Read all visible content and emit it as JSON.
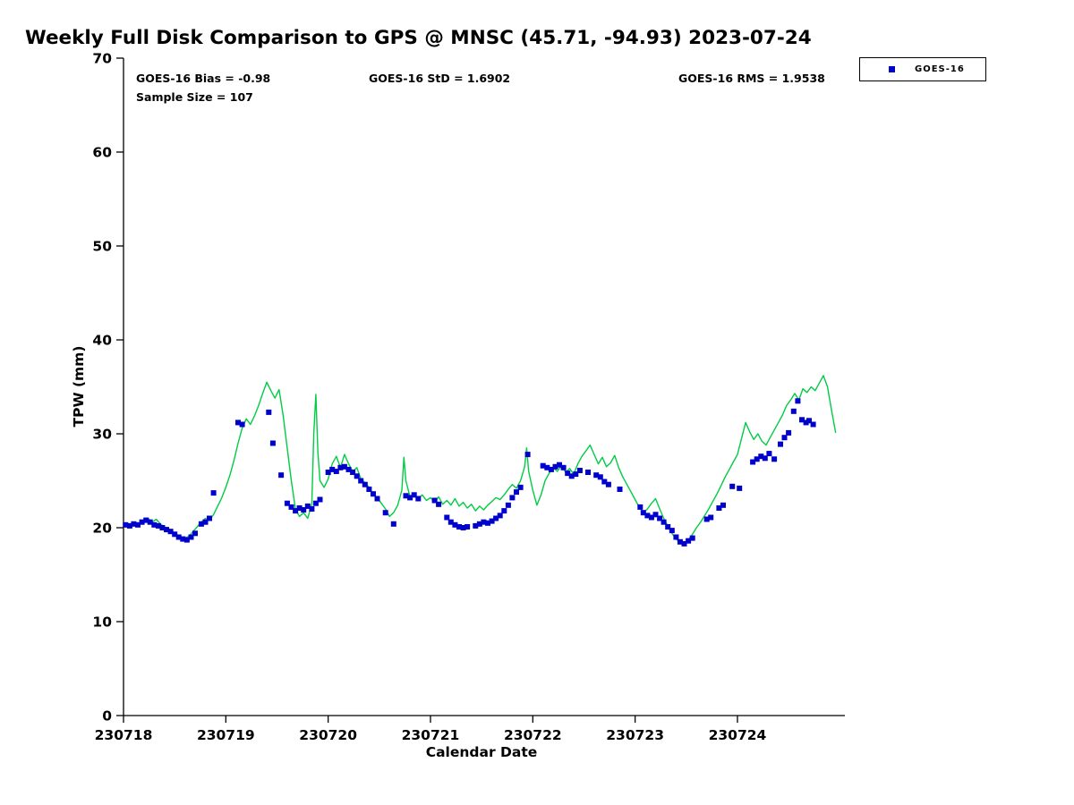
{
  "title": "Weekly Full Disk Comparison to GPS @ MNSC (45.71, -94.93) 2023-07-24",
  "annotations": {
    "bias": "GOES-16 Bias = -0.98",
    "std": "GOES-16 StD = 1.6902",
    "rms": "GOES-16 RMS = 1.9538",
    "sample_size": "Sample Size = 107"
  },
  "legend": {
    "entries": [
      {
        "label": "GOES-16",
        "marker": "square",
        "color": "#0000cc"
      }
    ]
  },
  "chart_data": {
    "type": "line+scatter",
    "title": "Weekly Full Disk Comparison to GPS @ MNSC (45.71, -94.93) 2023-07-24",
    "xlabel": "Calendar Date",
    "ylabel": "TPW (mm)",
    "xlim": [
      230718,
      230725.05
    ],
    "ylim": [
      0,
      70
    ],
    "xticks": [
      230718,
      230719,
      230720,
      230721,
      230722,
      230723,
      230724
    ],
    "yticks": [
      0,
      10,
      20,
      30,
      40,
      50,
      60,
      70
    ],
    "grid": false,
    "legend_position": "top-right-outside",
    "series": [
      {
        "name": "GPS",
        "type": "line",
        "color": "#00cc44",
        "x": [
          230718.0,
          230718.04,
          230718.08,
          230718.12,
          230718.16,
          230718.2,
          230718.24,
          230718.28,
          230718.32,
          230718.36,
          230718.4,
          230718.44,
          230718.48,
          230718.52,
          230718.56,
          230718.6,
          230718.64,
          230718.68,
          230718.72,
          230718.76,
          230718.8,
          230718.84,
          230718.88,
          230718.92,
          230718.96,
          230719.0,
          230719.04,
          230719.08,
          230719.12,
          230719.16,
          230719.2,
          230719.24,
          230719.28,
          230719.32,
          230719.36,
          230719.4,
          230719.44,
          230719.48,
          230719.52,
          230719.56,
          230719.6,
          230719.64,
          230719.68,
          230719.72,
          230719.76,
          230719.8,
          230719.84,
          230719.86,
          230719.88,
          230719.9,
          230719.92,
          230719.96,
          230720.0,
          230720.04,
          230720.08,
          230720.12,
          230720.16,
          230720.2,
          230720.24,
          230720.28,
          230720.32,
          230720.36,
          230720.4,
          230720.44,
          230720.48,
          230720.52,
          230720.56,
          230720.6,
          230720.64,
          230720.68,
          230720.72,
          230720.74,
          230720.76,
          230720.8,
          230720.84,
          230720.88,
          230720.92,
          230720.96,
          230721.0,
          230721.04,
          230721.08,
          230721.12,
          230721.16,
          230721.2,
          230721.24,
          230721.28,
          230721.32,
          230721.36,
          230721.4,
          230721.44,
          230721.48,
          230721.52,
          230721.56,
          230721.6,
          230721.64,
          230721.68,
          230721.72,
          230721.76,
          230721.8,
          230721.84,
          230721.88,
          230721.92,
          230721.94,
          230721.96,
          230722.0,
          230722.04,
          230722.08,
          230722.12,
          230722.16,
          230722.2,
          230722.24,
          230722.28,
          230722.32,
          230722.36,
          230722.4,
          230722.44,
          230722.48,
          230722.52,
          230722.56,
          230722.6,
          230722.64,
          230722.68,
          230722.72,
          230722.76,
          230722.8,
          230722.84,
          230722.88,
          230722.92,
          230722.96,
          230723.0,
          230723.04,
          230723.08,
          230723.12,
          230723.16,
          230723.2,
          230723.24,
          230723.28,
          230723.32,
          230723.36,
          230723.4,
          230723.44,
          230723.48,
          230723.52,
          230723.56,
          230723.6,
          230723.64,
          230723.68,
          230723.72,
          230723.76,
          230723.8,
          230723.84,
          230723.88,
          230723.92,
          230723.96,
          230724.0,
          230724.04,
          230724.08,
          230724.12,
          230724.16,
          230724.2,
          230724.24,
          230724.28,
          230724.32,
          230724.36,
          230724.4,
          230724.44,
          230724.48,
          230724.52,
          230724.56,
          230724.6,
          230724.64,
          230724.68,
          230724.72,
          230724.76,
          230724.8,
          230724.84,
          230724.88,
          230724.92,
          230724.96
        ],
        "y": [
          20.6,
          20.3,
          20.2,
          20.5,
          20.4,
          20.8,
          21.0,
          20.6,
          20.9,
          20.4,
          20.1,
          19.9,
          19.6,
          19.3,
          19.0,
          18.9,
          19.1,
          19.6,
          20.1,
          20.6,
          21.0,
          20.8,
          21.4,
          22.3,
          23.2,
          24.3,
          25.6,
          27.2,
          29.0,
          30.6,
          31.6,
          31.0,
          31.9,
          33.0,
          34.3,
          35.5,
          34.6,
          33.8,
          34.7,
          32.0,
          28.5,
          25.0,
          22.0,
          21.2,
          21.6,
          21.0,
          22.5,
          30.0,
          34.2,
          28.0,
          25.0,
          24.3,
          25.2,
          26.8,
          27.6,
          26.4,
          27.8,
          26.8,
          26.0,
          26.4,
          25.2,
          24.8,
          24.3,
          23.6,
          23.2,
          22.6,
          22.0,
          21.2,
          21.6,
          22.4,
          24.0,
          27.5,
          25.0,
          23.3,
          23.6,
          23.1,
          23.5,
          22.9,
          23.2,
          22.7,
          23.3,
          22.5,
          22.9,
          22.4,
          23.1,
          22.3,
          22.7,
          22.1,
          22.5,
          21.8,
          22.3,
          21.9,
          22.4,
          22.8,
          23.2,
          23.0,
          23.5,
          24.1,
          24.6,
          24.2,
          25.0,
          26.5,
          28.5,
          26.0,
          24.0,
          22.4,
          23.5,
          25.0,
          25.8,
          26.4,
          26.0,
          26.6,
          25.9,
          26.3,
          25.7,
          26.8,
          27.6,
          28.2,
          28.8,
          27.8,
          26.8,
          27.5,
          26.5,
          26.9,
          27.7,
          26.4,
          25.4,
          24.6,
          23.8,
          23.0,
          22.2,
          21.6,
          22.0,
          22.6,
          23.1,
          22.0,
          21.0,
          20.2,
          19.4,
          18.8,
          18.4,
          18.3,
          18.7,
          19.3,
          20.0,
          20.6,
          21.3,
          22.0,
          22.8,
          23.6,
          24.5,
          25.4,
          26.2,
          27.0,
          27.8,
          29.5,
          31.2,
          30.2,
          29.4,
          30.0,
          29.2,
          28.8,
          29.6,
          30.4,
          31.2,
          32.0,
          33.0,
          33.6,
          34.3,
          33.6,
          34.8,
          34.4,
          35.0,
          34.6,
          35.4,
          36.2,
          35.0,
          32.5,
          30.1
        ]
      },
      {
        "name": "GOES-16",
        "type": "scatter",
        "marker": "square",
        "color": "#0000cc",
        "x": [
          230718.02,
          230718.06,
          230718.1,
          230718.14,
          230718.18,
          230718.22,
          230718.26,
          230718.3,
          230718.34,
          230718.38,
          230718.42,
          230718.46,
          230718.5,
          230718.54,
          230718.58,
          230718.62,
          230718.66,
          230718.7,
          230718.76,
          230718.8,
          230718.84,
          230718.88,
          230719.12,
          230719.16,
          230719.42,
          230719.46,
          230719.54,
          230719.6,
          230719.64,
          230719.68,
          230719.72,
          230719.76,
          230719.8,
          230719.84,
          230719.88,
          230719.92,
          230720.0,
          230720.04,
          230720.08,
          230720.12,
          230720.16,
          230720.2,
          230720.24,
          230720.28,
          230720.32,
          230720.36,
          230720.4,
          230720.44,
          230720.48,
          230720.56,
          230720.64,
          230720.76,
          230720.8,
          230720.84,
          230720.88,
          230721.04,
          230721.08,
          230721.16,
          230721.2,
          230721.24,
          230721.28,
          230721.32,
          230721.36,
          230721.44,
          230721.48,
          230721.52,
          230721.56,
          230721.6,
          230721.64,
          230721.68,
          230721.72,
          230721.76,
          230721.8,
          230721.84,
          230721.88,
          230721.95,
          230722.1,
          230722.14,
          230722.18,
          230722.22,
          230722.26,
          230722.3,
          230722.34,
          230722.38,
          230722.42,
          230722.46,
          230722.54,
          230722.62,
          230722.66,
          230722.7,
          230722.74,
          230722.85,
          230723.05,
          230723.08,
          230723.12,
          230723.16,
          230723.2,
          230723.24,
          230723.28,
          230723.32,
          230723.36,
          230723.4,
          230723.44,
          230723.48,
          230723.52,
          230723.56,
          230723.7,
          230723.74,
          230723.82,
          230723.86,
          230723.95,
          230724.02,
          230724.15,
          230724.19,
          230724.23,
          230724.27,
          230724.31,
          230724.36,
          230724.42,
          230724.46,
          230724.5,
          230724.55,
          230724.59,
          230724.63,
          230724.67,
          230724.7,
          230724.74
        ],
        "y": [
          20.3,
          20.2,
          20.4,
          20.3,
          20.6,
          20.8,
          20.6,
          20.3,
          20.2,
          20.0,
          19.8,
          19.6,
          19.3,
          19.0,
          18.8,
          18.7,
          19.0,
          19.4,
          20.4,
          20.6,
          21.0,
          23.7,
          31.2,
          31.0,
          32.3,
          29.0,
          25.6,
          22.6,
          22.2,
          21.8,
          22.1,
          21.9,
          22.3,
          22.0,
          22.6,
          23.0,
          25.9,
          26.2,
          26.0,
          26.4,
          26.5,
          26.2,
          25.9,
          25.5,
          25.0,
          24.6,
          24.1,
          23.6,
          23.1,
          21.6,
          20.4,
          23.4,
          23.2,
          23.5,
          23.1,
          22.9,
          22.5,
          21.1,
          20.6,
          20.3,
          20.1,
          20.0,
          20.1,
          20.2,
          20.4,
          20.6,
          20.5,
          20.7,
          21.0,
          21.3,
          21.8,
          22.4,
          23.2,
          23.8,
          24.3,
          27.8,
          26.6,
          26.4,
          26.2,
          26.5,
          26.7,
          26.4,
          25.8,
          25.5,
          25.7,
          26.1,
          25.9,
          25.6,
          25.4,
          24.9,
          24.6,
          24.1,
          22.2,
          21.6,
          21.3,
          21.1,
          21.4,
          21.0,
          20.6,
          20.1,
          19.7,
          19.0,
          18.5,
          18.3,
          18.6,
          18.9,
          20.9,
          21.1,
          22.1,
          22.4,
          24.4,
          24.2,
          27.0,
          27.3,
          27.6,
          27.4,
          27.9,
          27.3,
          28.9,
          29.6,
          30.1,
          32.4,
          33.5,
          31.5,
          31.2,
          31.4,
          31.0
        ]
      }
    ]
  }
}
